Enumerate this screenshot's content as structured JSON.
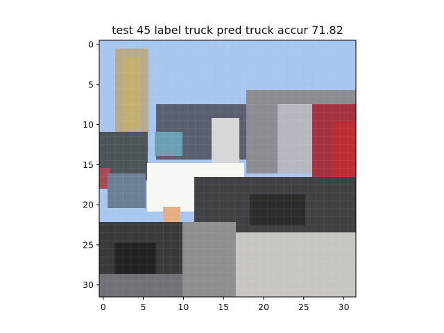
{
  "title": "test 45 label truck pred truck accur 71.82",
  "image": {
    "description": "low-resolution 32x32 photo of a truck",
    "grid_size": 32
  },
  "axes": {
    "x_ticks": [
      "0",
      "5",
      "10",
      "15",
      "20",
      "25",
      "30"
    ],
    "y_ticks": [
      "0",
      "5",
      "10",
      "15",
      "20",
      "25",
      "30"
    ],
    "x_range": [
      -0.5,
      31.5
    ],
    "y_range": [
      31.5,
      -0.5
    ]
  }
}
